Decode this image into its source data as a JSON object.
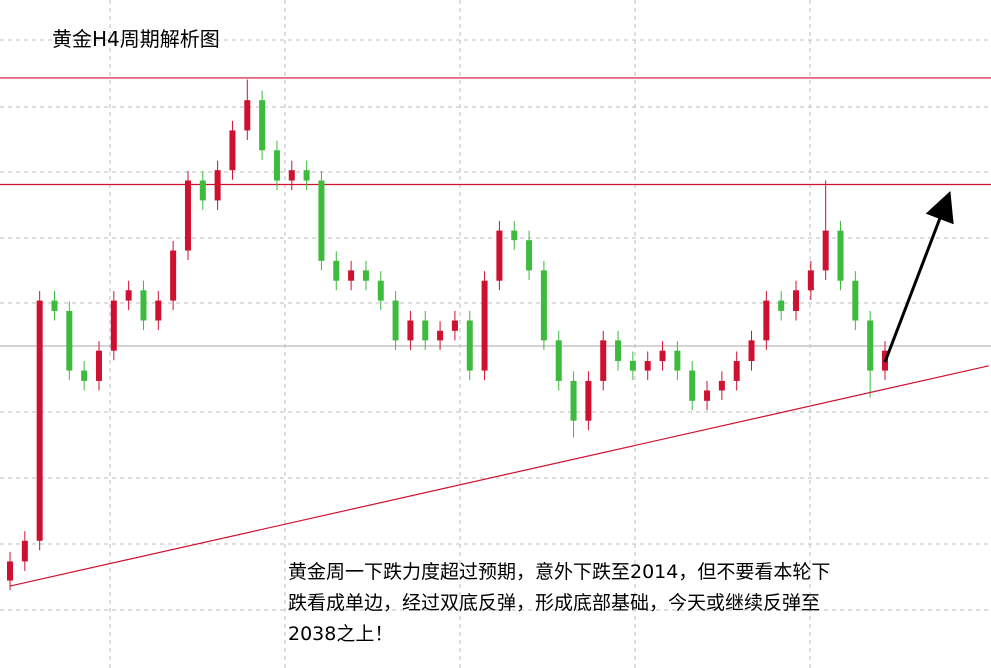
{
  "chart_data": {
    "type": "candlestick",
    "title": "黄金H4周期解析图",
    "annotation": [
      "黄金周一下跌力度超过预期，意外下跌至2014，但不要看本轮下",
      "跌看成单边，经过双底反弹，形成底部基础，今天或继续反弹至",
      "2038之上！"
    ],
    "ylim": [
      1979,
      2063
    ],
    "up_color": "#d01030",
    "down_color": "#3dbb3d",
    "level_color": "#d01030",
    "levels": [
      2053.2,
      2039.8
    ],
    "trendline": {
      "start": {
        "index": 0,
        "value": 1989.3
      },
      "end": {
        "index": 66,
        "value": 2017.0
      }
    },
    "open": [
      1990.0,
      1992.4,
      1995.0,
      2025.2,
      2023.9,
      2016.4,
      2015.1,
      2018.9,
      2025.2,
      2026.5,
      2022.7,
      2025.2,
      2031.5,
      2040.3,
      2037.8,
      2041.6,
      2046.6,
      2050.4,
      2044.1,
      2040.3,
      2041.6,
      2040.3,
      2030.2,
      2027.7,
      2029.0,
      2027.7,
      2025.2,
      2020.2,
      2022.7,
      2020.2,
      2021.4,
      2022.7,
      2016.4,
      2027.7,
      2034.0,
      2032.8,
      2029.0,
      2020.2,
      2015.1,
      2010.1,
      2015.1,
      2020.2,
      2017.6,
      2016.4,
      2017.6,
      2018.9,
      2016.4,
      2012.6,
      2013.9,
      2015.1,
      2017.6,
      2020.2,
      2025.2,
      2023.9,
      2026.5,
      2029.0,
      2034.0,
      2027.7,
      2022.7,
      2016.4
    ],
    "close": [
      1992.4,
      1995.0,
      2025.2,
      2023.9,
      2016.4,
      2015.1,
      2018.9,
      2025.2,
      2026.5,
      2022.7,
      2025.2,
      2031.5,
      2040.3,
      2037.8,
      2041.6,
      2046.6,
      2050.4,
      2044.1,
      2040.3,
      2041.6,
      2040.3,
      2030.2,
      2027.7,
      2029.0,
      2027.7,
      2025.2,
      2020.2,
      2022.7,
      2020.2,
      2021.4,
      2022.7,
      2016.4,
      2027.7,
      2034.0,
      2032.8,
      2029.0,
      2020.2,
      2015.1,
      2010.1,
      2015.1,
      2020.2,
      2017.6,
      2016.4,
      2017.6,
      2018.9,
      2016.4,
      2012.6,
      2013.9,
      2015.1,
      2017.6,
      2020.2,
      2025.2,
      2023.9,
      2026.5,
      2029.0,
      2034.0,
      2027.7,
      2022.7,
      2016.4,
      2018.9
    ],
    "high": [
      1993.6,
      1996.2,
      2026.4,
      2026.4,
      2025.1,
      2017.6,
      2020.1,
      2026.4,
      2027.7,
      2027.7,
      2026.4,
      2032.7,
      2041.5,
      2041.5,
      2042.8,
      2047.8,
      2053.0,
      2051.6,
      2045.3,
      2042.8,
      2042.8,
      2041.5,
      2031.4,
      2030.2,
      2030.2,
      2028.9,
      2026.4,
      2023.9,
      2023.9,
      2022.6,
      2023.9,
      2023.9,
      2028.9,
      2035.2,
      2035.2,
      2034.0,
      2030.2,
      2021.4,
      2016.3,
      2016.3,
      2021.4,
      2021.4,
      2018.8,
      2018.8,
      2020.1,
      2020.1,
      2017.6,
      2015.1,
      2016.3,
      2018.8,
      2021.4,
      2026.4,
      2026.4,
      2027.7,
      2030.2,
      2040.3,
      2035.2,
      2028.9,
      2023.9,
      2020.1
    ],
    "low": [
      1988.8,
      1991.2,
      1993.8,
      2022.7,
      2015.2,
      2013.9,
      2013.9,
      2017.7,
      2024.0,
      2021.5,
      2021.5,
      2024.0,
      2030.3,
      2036.6,
      2036.6,
      2040.4,
      2045.4,
      2042.9,
      2039.1,
      2039.1,
      2039.1,
      2029.0,
      2026.5,
      2026.5,
      2026.5,
      2024.0,
      2019.0,
      2019.0,
      2019.0,
      2019.0,
      2020.2,
      2015.2,
      2015.2,
      2026.5,
      2031.6,
      2027.8,
      2019.0,
      2013.9,
      2008.0,
      2008.9,
      2013.9,
      2016.4,
      2015.2,
      2015.2,
      2016.4,
      2015.2,
      2011.4,
      2011.4,
      2012.7,
      2013.9,
      2016.4,
      2019.0,
      2022.7,
      2022.7,
      2025.3,
      2027.8,
      2026.5,
      2021.5,
      2013.0,
      2015.2
    ]
  }
}
